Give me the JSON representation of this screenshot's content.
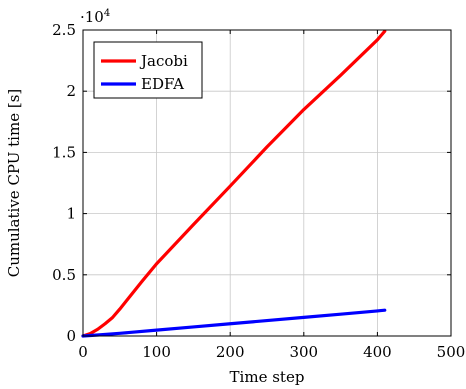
{
  "chart_data": {
    "type": "line",
    "xlabel": "Time step",
    "ylabel": "Cumulative CPU time [s]",
    "xlim": [
      0,
      500
    ],
    "ylim": [
      0,
      25000
    ],
    "x_ticks": [
      0,
      100,
      200,
      300,
      400,
      500
    ],
    "y_ticks": [
      0,
      5000,
      10000,
      15000,
      20000,
      25000
    ],
    "x_tick_labels": [
      "0",
      "100",
      "200",
      "300",
      "400",
      "500"
    ],
    "y_tick_labels": [
      "0",
      "0.5",
      "1",
      "1.5",
      "2",
      "2.5"
    ],
    "y_scale_base": "·10",
    "y_scale_exponent": "4",
    "grid": true,
    "legend_position": "top-left",
    "series": [
      {
        "name": "Jacobi",
        "color": "#ff0000",
        "x": [
          0,
          10,
          20,
          30,
          40,
          50,
          60,
          80,
          100,
          150,
          200,
          250,
          300,
          350,
          400,
          410
        ],
        "y": [
          0,
          200,
          550,
          1000,
          1500,
          2200,
          2950,
          4450,
          5900,
          9100,
          12250,
          15450,
          18500,
          21300,
          24200,
          24900
        ]
      },
      {
        "name": "EDFA",
        "color": "#0000ff",
        "x": [
          0,
          20,
          50,
          100,
          150,
          200,
          250,
          300,
          350,
          400,
          410
        ],
        "y": [
          0,
          80,
          220,
          480,
          740,
          1000,
          1260,
          1520,
          1780,
          2050,
          2110
        ]
      }
    ]
  }
}
